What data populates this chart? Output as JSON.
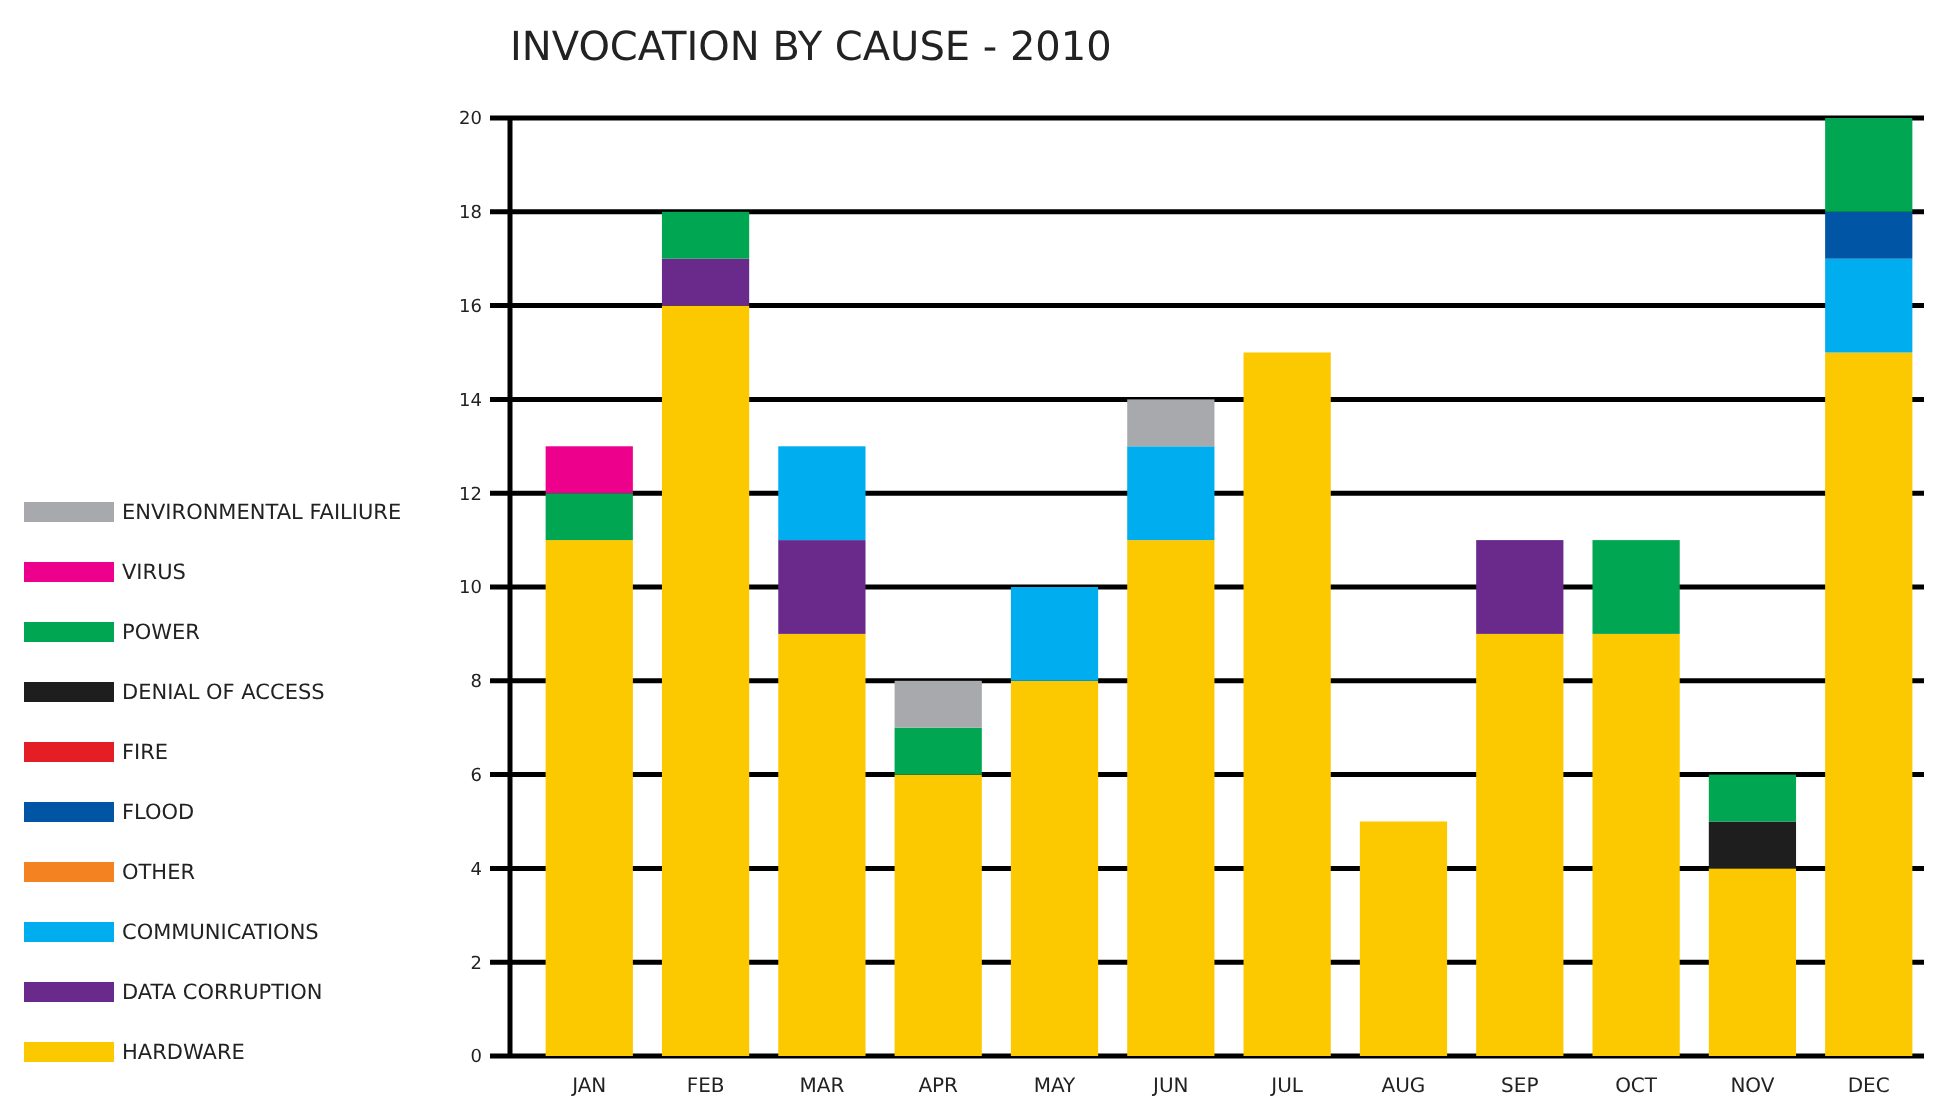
{
  "chart_data": {
    "type": "bar",
    "title": "INVOCATION BY CAUSE - 2010",
    "categories": [
      "JAN",
      "FEB",
      "MAR",
      "APR",
      "MAY",
      "JUN",
      "JUL",
      "AUG",
      "SEP",
      "OCT",
      "NOV",
      "DEC"
    ],
    "stacked": true,
    "ylim": [
      0,
      20
    ],
    "yticks": [
      0,
      2,
      4,
      6,
      8,
      10,
      12,
      14,
      16,
      18,
      20
    ],
    "grid": "y",
    "legend": "left",
    "series": [
      {
        "name": "HARDWARE",
        "color": "#fcc800",
        "values": [
          11,
          16,
          9,
          6,
          8,
          11,
          15,
          5,
          9,
          9,
          4,
          15
        ]
      },
      {
        "name": "DATA CORRUPTION",
        "color": "#6a2a8c",
        "values": [
          0,
          1,
          2,
          0,
          0,
          0,
          0,
          0,
          2,
          0,
          0,
          0
        ]
      },
      {
        "name": "COMMUNICATIONS",
        "color": "#00aeef",
        "values": [
          0,
          0,
          2,
          0,
          2,
          2,
          0,
          0,
          0,
          0,
          0,
          2
        ]
      },
      {
        "name": "OTHER",
        "color": "#f58220",
        "values": [
          0,
          0,
          0,
          0,
          0,
          0,
          0,
          0,
          0,
          0,
          0,
          0
        ]
      },
      {
        "name": "FLOOD",
        "color": "#0055a5",
        "values": [
          0,
          0,
          0,
          0,
          0,
          0,
          0,
          0,
          0,
          0,
          0,
          1
        ]
      },
      {
        "name": "FIRE",
        "color": "#e31e24",
        "values": [
          0,
          0,
          0,
          0,
          0,
          0,
          0,
          0,
          0,
          0,
          0,
          0
        ]
      },
      {
        "name": "DENIAL OF ACCESS",
        "color": "#1e1e1e",
        "values": [
          0,
          0,
          0,
          0,
          0,
          0,
          0,
          0,
          0,
          0,
          1,
          0
        ]
      },
      {
        "name": "POWER",
        "color": "#00a651",
        "values": [
          1,
          1,
          0,
          1,
          0,
          0,
          0,
          0,
          0,
          2,
          1,
          2
        ]
      },
      {
        "name": "VIRUS",
        "color": "#ec008c",
        "values": [
          1,
          0,
          0,
          0,
          0,
          0,
          0,
          0,
          0,
          0,
          0,
          0
        ]
      },
      {
        "name": "ENVIRONMENTAL FAILIURE",
        "color": "#a7a9ac",
        "values": [
          0,
          0,
          0,
          1,
          0,
          1,
          0,
          0,
          0,
          0,
          0,
          0
        ]
      }
    ]
  }
}
